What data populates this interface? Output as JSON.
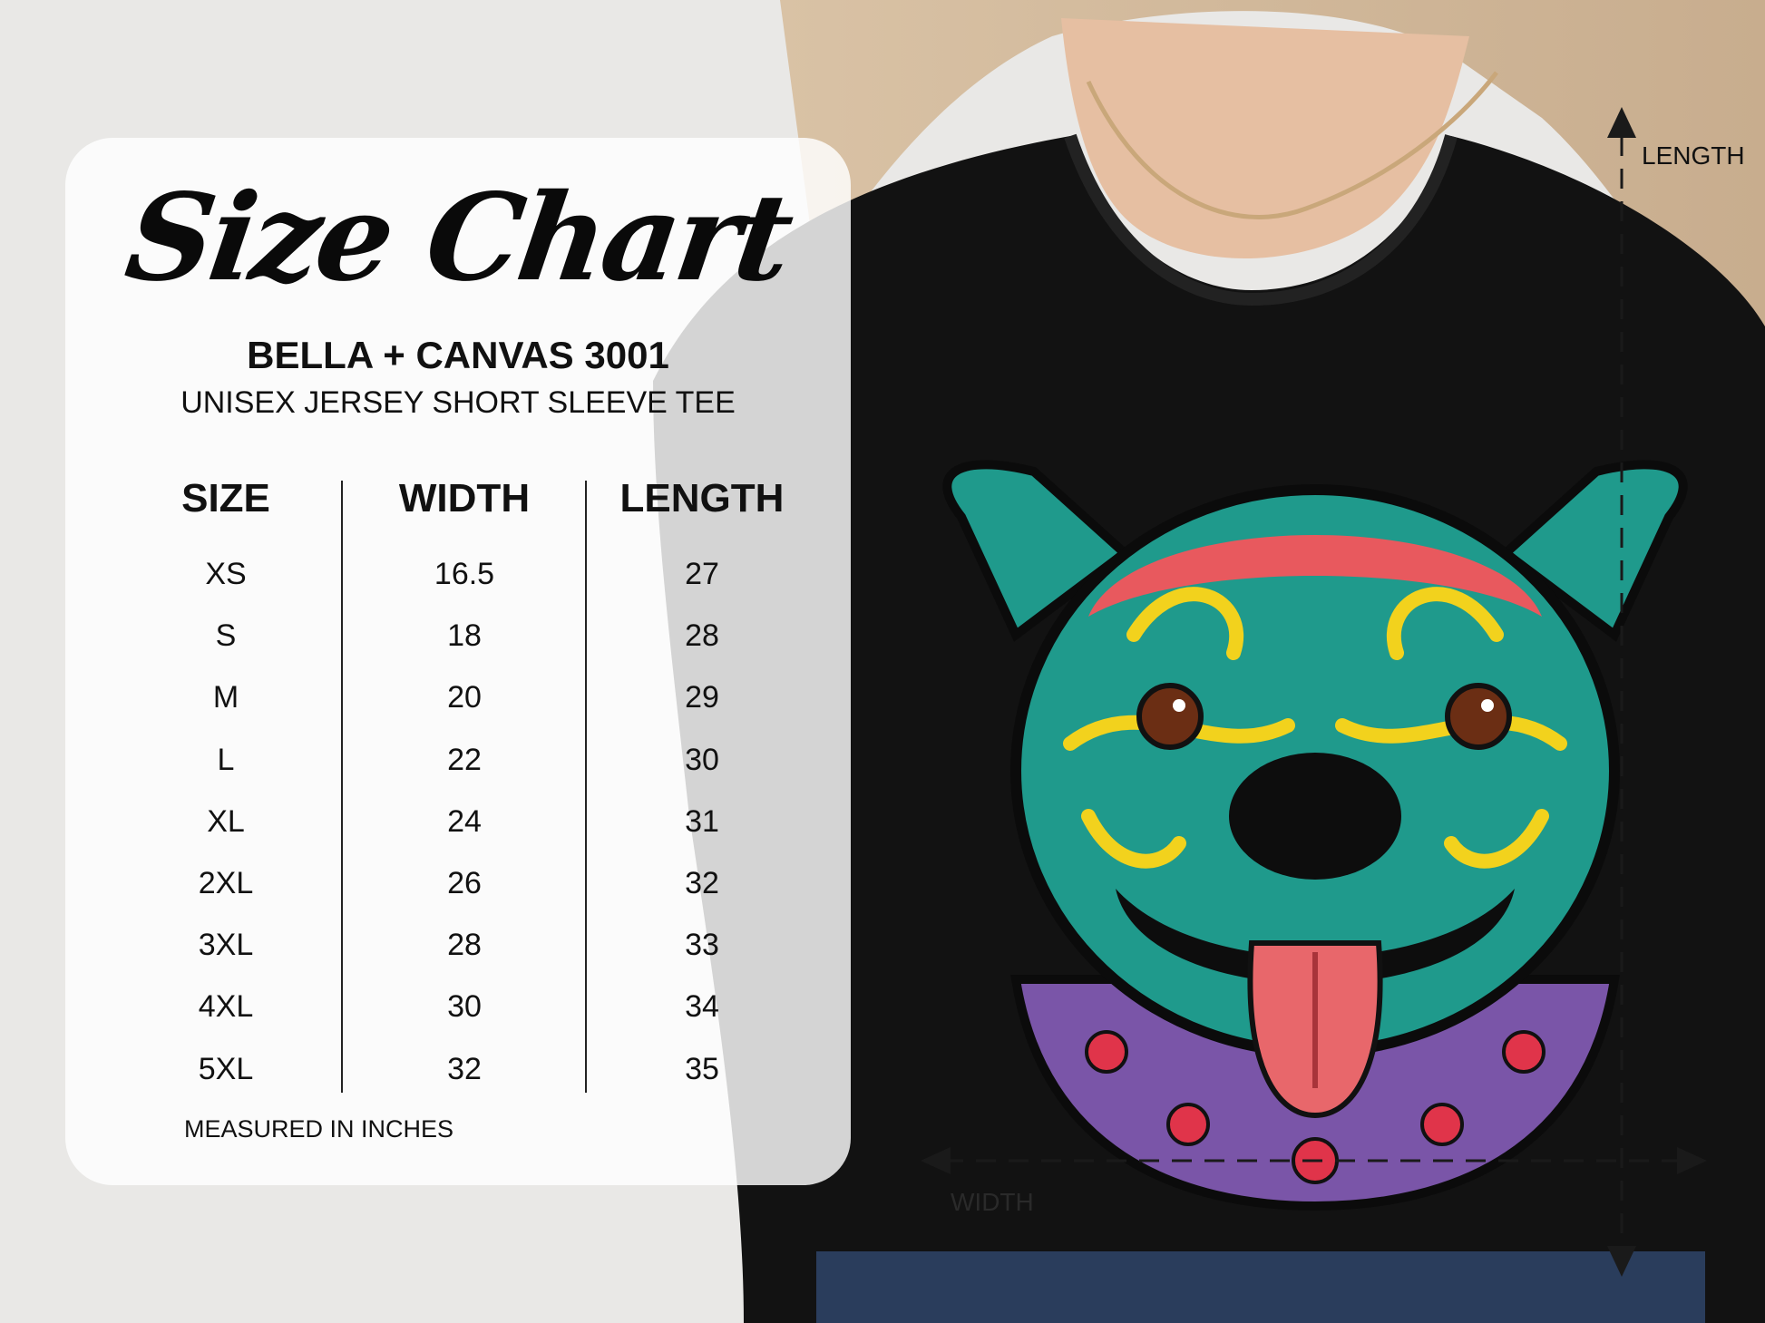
{
  "title": "Size Chart",
  "brand": "BELLA + CANVAS 3001",
  "subtitle": "UNISEX JERSEY SHORT SLEEVE TEE",
  "table": {
    "headers": [
      "SIZE",
      "WIDTH",
      "LENGTH"
    ],
    "rows": [
      [
        "XS",
        "16.5",
        "27"
      ],
      [
        "S",
        "18",
        "28"
      ],
      [
        "M",
        "20",
        "29"
      ],
      [
        "L",
        "22",
        "30"
      ],
      [
        "XL",
        "24",
        "31"
      ],
      [
        "2XL",
        "26",
        "32"
      ],
      [
        "3XL",
        "28",
        "33"
      ],
      [
        "4XL",
        "30",
        "34"
      ],
      [
        "5XL",
        "32",
        "35"
      ]
    ]
  },
  "note": "MEASURED IN INCHES",
  "diagram": {
    "length_label": "LENGTH",
    "width_label": "WIDTH"
  },
  "colors": {
    "shirt": "#111111",
    "dog_teal": "#1f9a8c",
    "dog_pink": "#e8595e",
    "dog_yellow": "#f2d21d",
    "collar_purple": "#7a55a8",
    "hair": "#cdb397"
  }
}
